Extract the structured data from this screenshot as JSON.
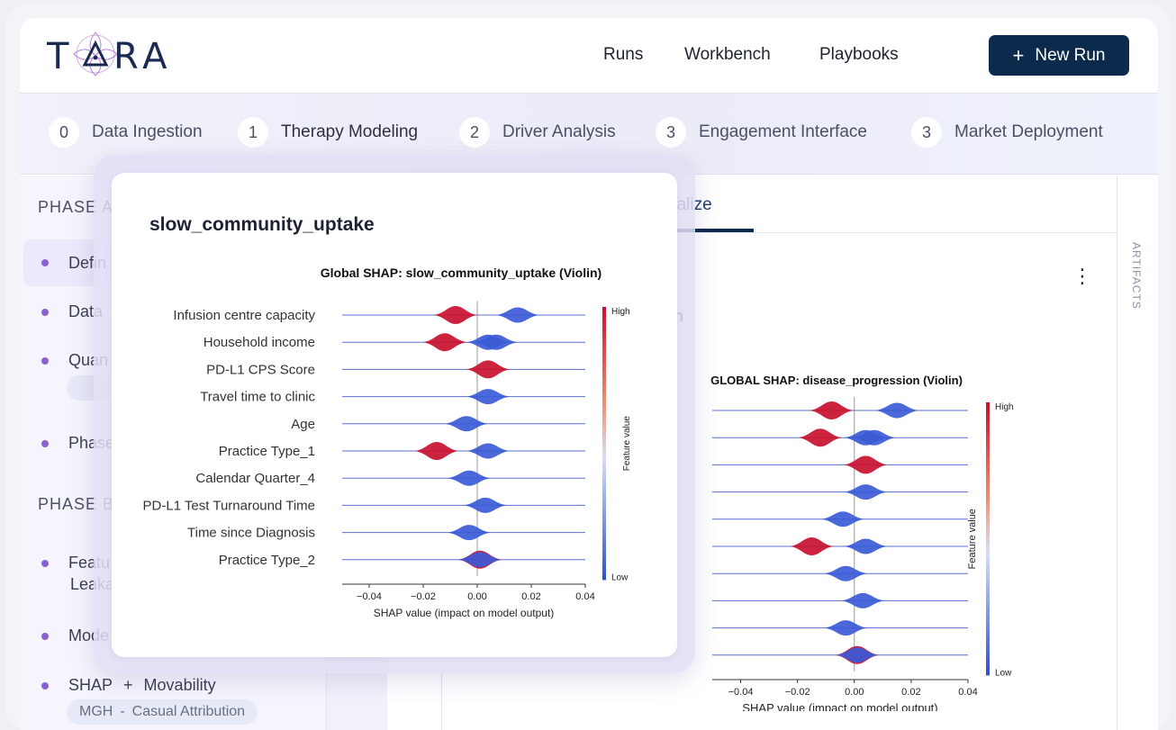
{
  "brand": {
    "name": "TARA",
    "color": "#1b2a52"
  },
  "header": {
    "nav": [
      "Runs",
      "Workbench",
      "Playbooks"
    ],
    "new_run_label": "New Run",
    "new_run_icon": "plus-icon"
  },
  "stepper": [
    {
      "num": "0",
      "label": "Data Ingestion"
    },
    {
      "num": "1",
      "label": "Therapy Modeling"
    },
    {
      "num": "2",
      "label": "Driver Analysis"
    },
    {
      "num": "3",
      "label": "Engagement Interface"
    },
    {
      "num": "3",
      "label": "Market Deployment"
    }
  ],
  "sidebar": {
    "phase_a": "PHASE A",
    "items_a": [
      "Defin",
      "Data",
      "Quan",
      "Phase"
    ],
    "phase_b": "PHASE B",
    "items_b": [
      "Featu",
      "Leaka",
      "Mode"
    ],
    "shap_item": {
      "left": "SHAP",
      "plus": "+",
      "right": "Movability"
    },
    "shap_pill": {
      "left": "MGH",
      "dash": "-",
      "right": "Casual Attribution"
    }
  },
  "main": {
    "tab_label": "ualize",
    "section_fragment": "n",
    "kebab_icon": "more-vertical-icon"
  },
  "artifacts_label": "ARTIFACTS",
  "card": {
    "title": "slow_community_uptake"
  },
  "chart_data": [
    {
      "type": "violin",
      "title": "Global SHAP: slow_community_uptake (Violin)",
      "xlabel": "SHAP value (impact on model output)",
      "colorbar_label": "Feature value",
      "colorbar_high": "High",
      "colorbar_low": "Low",
      "xlim": [
        -0.05,
        0.04
      ],
      "xticks": [
        "−0.04",
        "−0.02",
        "0.00",
        "0.02",
        "0.04"
      ],
      "xtick_values": [
        -0.04,
        -0.02,
        0.0,
        0.02,
        0.04
      ],
      "features": [
        {
          "name": "Infusion centre capacity",
          "lows": [
            0.015
          ],
          "highs": [
            -0.008
          ]
        },
        {
          "name": "Household income",
          "lows": [
            0.004,
            0.007
          ],
          "highs": [
            -0.012
          ]
        },
        {
          "name": "PD-L1 CPS Score",
          "lows": [],
          "highs": [
            0.004
          ]
        },
        {
          "name": "Travel time to clinic",
          "lows": [
            0.004
          ],
          "highs": []
        },
        {
          "name": "Age",
          "lows": [
            -0.004
          ],
          "highs": []
        },
        {
          "name": "Practice Type_1",
          "lows": [
            0.004
          ],
          "highs": [
            -0.015
          ]
        },
        {
          "name": "Calendar Quarter_4",
          "lows": [
            -0.003
          ],
          "highs": []
        },
        {
          "name": "PD-L1 Test Turnaround Time",
          "lows": [
            0.003
          ],
          "highs": []
        },
        {
          "name": "Time since Diagnosis",
          "lows": [
            -0.003
          ],
          "highs": []
        },
        {
          "name": "Practice Type_2",
          "lows": [
            0.001
          ],
          "highs": [
            0.001
          ]
        }
      ]
    },
    {
      "type": "violin",
      "title": "GLOBAL SHAP: disease_progression (Violin)",
      "xlabel": "SHAP value (impact on model output)",
      "colorbar_label": "Feature value",
      "colorbar_high": "High",
      "colorbar_low": "Low",
      "xlim": [
        -0.05,
        0.04
      ],
      "xticks": [
        "−0.04",
        "−0.02",
        "0.00",
        "0.02",
        "0.04"
      ],
      "xtick_values": [
        -0.04,
        -0.02,
        0.0,
        0.02,
        0.04
      ],
      "features": [
        {
          "name": "",
          "lows": [
            0.015
          ],
          "highs": [
            -0.008
          ]
        },
        {
          "name": "",
          "lows": [
            0.004,
            0.007
          ],
          "highs": [
            -0.012
          ]
        },
        {
          "name": "",
          "lows": [],
          "highs": [
            0.004
          ]
        },
        {
          "name": "",
          "lows": [
            0.004
          ],
          "highs": []
        },
        {
          "name": "",
          "lows": [
            -0.004
          ],
          "highs": []
        },
        {
          "name": "",
          "lows": [
            0.004
          ],
          "highs": [
            -0.015
          ]
        },
        {
          "name": "",
          "lows": [
            -0.003
          ],
          "highs": []
        },
        {
          "name": "",
          "lows": [
            0.003
          ],
          "highs": []
        },
        {
          "name": "",
          "lows": [
            -0.003
          ],
          "highs": []
        },
        {
          "name": "",
          "lows": [
            0.001
          ],
          "highs": [
            0.001
          ]
        }
      ]
    }
  ]
}
